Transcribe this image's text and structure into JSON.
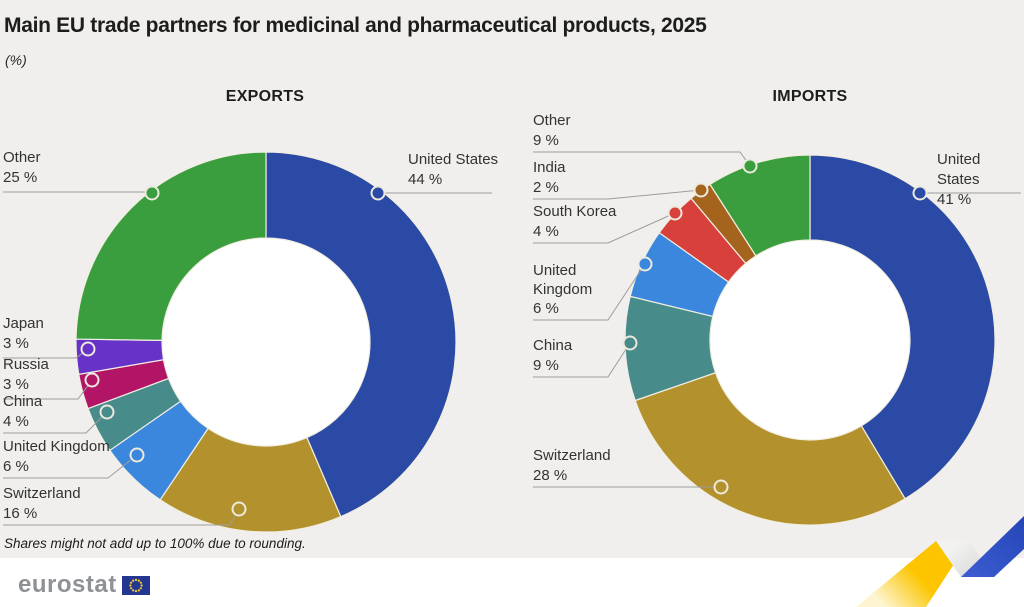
{
  "title": "Main EU trade partners for medicinal and pharmaceutical products, 2025",
  "subtitle": "(%)",
  "footnote": "Shares might not add up to 100% due to rounding.",
  "logo": {
    "text": "eurostat"
  },
  "colors": {
    "background": "#f0efed",
    "footer_band": "#ffffff",
    "leader_line": "#9d9c9a",
    "dot_ring": "#ece9dd",
    "segment_separator": "#f1eee2",
    "ribbon_yellow": "#fcc500",
    "ribbon_blue": "#2747b8",
    "ribbon_gray": "#d8d8d7",
    "flag_blue": "#24368f",
    "flag_star_yellow": "#f7d030"
  },
  "chart_data": [
    {
      "type": "pie",
      "donut": true,
      "title": "EXPORTS",
      "unit": "%",
      "start_angle": "top",
      "direction": "clockwise",
      "legend_position": "callouts",
      "segments": [
        {
          "name": "United States",
          "value": 44,
          "display": "44 %",
          "color": "#2b4aa5"
        },
        {
          "name": "Switzerland",
          "value": 16,
          "display": "16 %",
          "color": "#b3922e"
        },
        {
          "name": "United Kingdom",
          "value": 6,
          "display": "6 %",
          "color": "#3a87dd"
        },
        {
          "name": "China",
          "value": 4,
          "display": "4 %",
          "color": "#478b8b"
        },
        {
          "name": "Russia",
          "value": 3,
          "display": "3 %",
          "color": "#b21566"
        },
        {
          "name": "Japan",
          "value": 3,
          "display": "3 %",
          "color": "#6632c8"
        },
        {
          "name": "Other",
          "value": 25,
          "display": "25 %",
          "color": "#3a9e3e"
        }
      ]
    },
    {
      "type": "pie",
      "donut": true,
      "title": "IMPORTS",
      "unit": "%",
      "start_angle": "top",
      "direction": "clockwise",
      "legend_position": "callouts",
      "segments": [
        {
          "name": "United States",
          "value": 41,
          "display": "41 %",
          "color": "#2b4aa5"
        },
        {
          "name": "Switzerland",
          "value": 28,
          "display": "28 %",
          "color": "#b3922e"
        },
        {
          "name": "China",
          "value": 9,
          "display": "9 %",
          "color": "#478b8b"
        },
        {
          "name": "United Kingdom",
          "value": 6,
          "display": "6 %",
          "color": "#3a87dd"
        },
        {
          "name": "South Korea",
          "value": 4,
          "display": "4 %",
          "color": "#d8403c"
        },
        {
          "name": "India",
          "value": 2,
          "display": "2 %",
          "color": "#a5641e"
        },
        {
          "name": "Other",
          "value": 9,
          "display": "9 %",
          "color": "#3a9e3e"
        }
      ]
    }
  ]
}
